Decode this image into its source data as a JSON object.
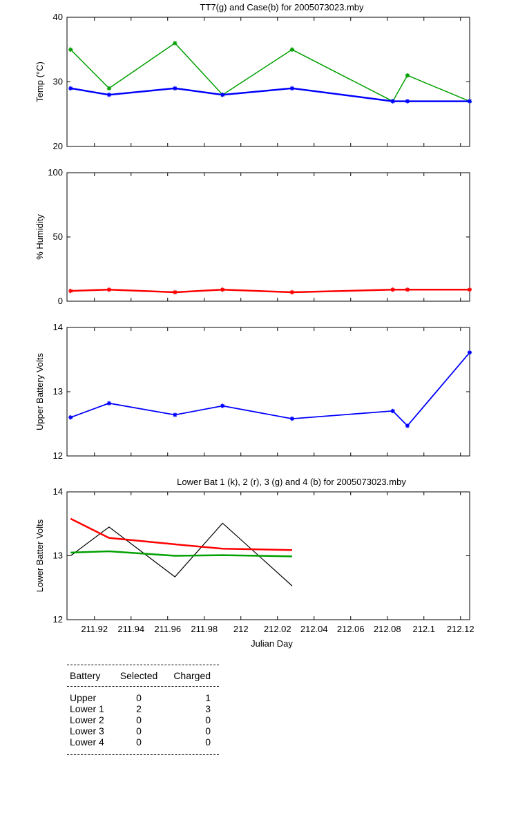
{
  "chart_data": [
    {
      "type": "line",
      "title": "TT7(g) and Case(b) for 2005073023.mby",
      "xlabel": "",
      "ylabel": "Temp (°C)",
      "xlim": [
        211.905,
        212.125
      ],
      "ylim": [
        20,
        40
      ],
      "yticks": [
        20,
        30,
        40
      ],
      "grid": false,
      "series": [
        {
          "color": "#00a000",
          "marker": "*",
          "width": 1.5,
          "x": [
            211.907,
            211.928,
            211.964,
            211.99,
            212.028,
            212.083,
            212.091,
            212.125
          ],
          "y": [
            35,
            29,
            36,
            28,
            35,
            27,
            31,
            27
          ]
        },
        {
          "color": "#0000ff",
          "marker": "*",
          "width": 2.5,
          "x": [
            211.907,
            211.928,
            211.964,
            211.99,
            212.028,
            212.083,
            212.091,
            212.125
          ],
          "y": [
            29,
            28,
            29,
            28,
            29,
            27,
            27,
            27
          ]
        }
      ]
    },
    {
      "type": "line",
      "title": "",
      "xlabel": "",
      "ylabel": "% Humidity",
      "xlim": [
        211.905,
        212.125
      ],
      "ylim": [
        0,
        100
      ],
      "yticks": [
        0,
        50,
        100
      ],
      "grid": false,
      "series": [
        {
          "color": "#ff0000",
          "marker": "*",
          "width": 2.5,
          "x": [
            211.907,
            211.928,
            211.964,
            211.99,
            212.028,
            212.083,
            212.091,
            212.125
          ],
          "y": [
            8,
            9,
            7,
            9,
            7,
            9,
            9,
            9
          ]
        }
      ]
    },
    {
      "type": "line",
      "title": "",
      "xlabel": "",
      "ylabel": "Upper Battery Volts",
      "xlim": [
        211.905,
        212.125
      ],
      "ylim": [
        12,
        14
      ],
      "yticks": [
        12,
        13,
        14
      ],
      "grid": false,
      "series": [
        {
          "color": "#0000ff",
          "marker": "*",
          "width": 1.8,
          "x": [
            211.907,
            211.928,
            211.964,
            211.99,
            212.028,
            212.083,
            212.091,
            212.125
          ],
          "y": [
            12.6,
            12.82,
            12.64,
            12.78,
            12.58,
            12.7,
            12.47,
            13.61
          ]
        }
      ]
    },
    {
      "type": "line",
      "title": "Lower Bat 1 (k), 2 (r), 3 (g) and 4 (b) for 2005073023.mby",
      "xlabel": "Julian Day",
      "ylabel": "Lower Batter Volts",
      "xlim": [
        211.905,
        212.125
      ],
      "ylim": [
        12,
        14
      ],
      "yticks": [
        12,
        13,
        14
      ],
      "xticks": [
        211.92,
        211.94,
        211.96,
        211.98,
        212,
        212.02,
        212.04,
        212.06,
        212.08,
        212.1,
        212.12
      ],
      "xticklabels": [
        "211.92",
        "211.94",
        "211.96",
        "211.98",
        "212",
        "212.02",
        "212.04",
        "212.06",
        "212.08",
        "212.1",
        "212.12"
      ],
      "grid": false,
      "series": [
        {
          "color": "#000000",
          "marker": "",
          "width": 1.2,
          "x": [
            211.907,
            211.928,
            211.964,
            211.99,
            212.028
          ],
          "y": [
            13.0,
            13.45,
            12.67,
            13.51,
            12.53
          ]
        },
        {
          "color": "#ff0000",
          "marker": "",
          "width": 2.5,
          "x": [
            211.907,
            211.928,
            211.964,
            211.99,
            212.028
          ],
          "y": [
            13.58,
            13.28,
            13.18,
            13.11,
            13.09
          ]
        },
        {
          "color": "#00a000",
          "marker": "",
          "width": 2.5,
          "x": [
            211.907,
            211.928,
            211.964,
            211.99,
            212.028
          ],
          "y": [
            13.05,
            13.07,
            13.0,
            13.01,
            12.99
          ]
        }
      ]
    }
  ],
  "battery_table": {
    "headers": [
      "Battery",
      "Selected",
      "Charged"
    ],
    "rows": [
      [
        "Upper",
        "0",
        "1"
      ],
      [
        "Lower 1",
        "2",
        "3"
      ],
      [
        "Lower 2",
        "0",
        "0"
      ],
      [
        "Lower 3",
        "0",
        "0"
      ],
      [
        "Lower 4",
        "0",
        "0"
      ]
    ]
  }
}
